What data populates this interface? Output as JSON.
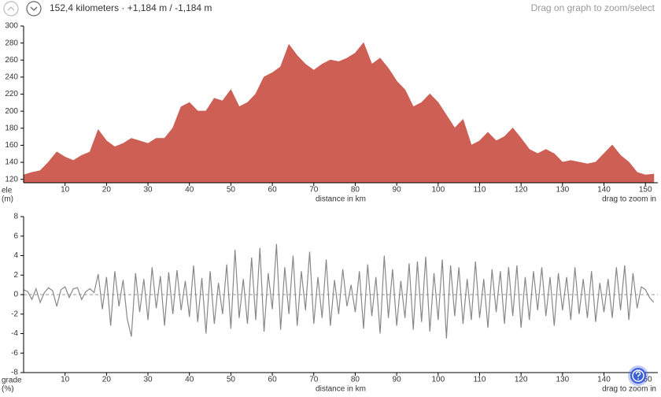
{
  "header": {
    "summary": "152,4 kilometers · +1,184 m / -1,184 m",
    "hint": "Drag on graph to zoom/select"
  },
  "chart_data": [
    {
      "type": "area",
      "color": "#cd5f55",
      "ylabel": [
        "ele",
        "(m)"
      ],
      "xlabel": "distance in km",
      "note": "drag to zoom in",
      "xlim": [
        0,
        153
      ],
      "xticks": [
        10,
        20,
        30,
        40,
        50,
        60,
        70,
        80,
        90,
        100,
        110,
        120,
        130,
        140,
        150
      ],
      "ylim": [
        116,
        300
      ],
      "yticks": [
        120,
        140,
        160,
        180,
        200,
        220,
        240,
        260,
        280,
        300
      ],
      "x": [
        0,
        2,
        4,
        6,
        8,
        10,
        12,
        14,
        16,
        18,
        20,
        22,
        24,
        26,
        28,
        30,
        32,
        34,
        36,
        38,
        40,
        42,
        44,
        46,
        48,
        50,
        52,
        54,
        56,
        58,
        60,
        62,
        64,
        66,
        68,
        70,
        72,
        74,
        76,
        78,
        80,
        82,
        84,
        86,
        88,
        90,
        92,
        94,
        96,
        98,
        100,
        102,
        104,
        106,
        108,
        110,
        112,
        114,
        116,
        118,
        120,
        122,
        124,
        126,
        128,
        130,
        132,
        134,
        136,
        138,
        140,
        142,
        144,
        146,
        148,
        150,
        152
      ],
      "values": [
        125,
        128,
        130,
        140,
        152,
        146,
        142,
        148,
        152,
        178,
        165,
        158,
        162,
        168,
        165,
        162,
        168,
        168,
        180,
        205,
        210,
        200,
        200,
        215,
        212,
        225,
        205,
        210,
        220,
        240,
        245,
        252,
        278,
        265,
        255,
        248,
        255,
        260,
        258,
        262,
        268,
        280,
        255,
        262,
        250,
        235,
        225,
        205,
        210,
        220,
        210,
        195,
        180,
        190,
        160,
        165,
        175,
        165,
        170,
        180,
        168,
        155,
        150,
        155,
        150,
        140,
        142,
        140,
        138,
        140,
        150,
        160,
        148,
        140,
        128,
        125,
        126
      ]
    },
    {
      "type": "line",
      "color": "#888888",
      "zero_line": true,
      "ylabel": [
        "grade",
        "(%)"
      ],
      "xlabel": "distance in km",
      "note": "drag to zoom in",
      "xlim": [
        0,
        153
      ],
      "xticks": [
        10,
        20,
        30,
        40,
        50,
        60,
        70,
        80,
        90,
        100,
        110,
        120,
        130,
        140,
        150
      ],
      "ylim": [
        -8,
        8
      ],
      "yticks": [
        -8,
        -6,
        -4,
        -2,
        0,
        2,
        4,
        6,
        8
      ],
      "x": [
        0,
        1,
        2,
        3,
        4,
        5,
        6,
        7,
        8,
        9,
        10,
        11,
        12,
        13,
        14,
        15,
        16,
        17,
        18,
        19,
        20,
        21,
        22,
        23,
        24,
        25,
        26,
        27,
        28,
        29,
        30,
        31,
        32,
        33,
        34,
        35,
        36,
        37,
        38,
        39,
        40,
        41,
        42,
        43,
        44,
        45,
        46,
        47,
        48,
        49,
        50,
        51,
        52,
        53,
        54,
        55,
        56,
        57,
        58,
        59,
        60,
        61,
        62,
        63,
        64,
        65,
        66,
        67,
        68,
        69,
        70,
        71,
        72,
        73,
        74,
        75,
        76,
        77,
        78,
        79,
        80,
        81,
        82,
        83,
        84,
        85,
        86,
        87,
        88,
        89,
        90,
        91,
        92,
        93,
        94,
        95,
        96,
        97,
        98,
        99,
        100,
        101,
        102,
        103,
        104,
        105,
        106,
        107,
        108,
        109,
        110,
        111,
        112,
        113,
        114,
        115,
        116,
        117,
        118,
        119,
        120,
        121,
        122,
        123,
        124,
        125,
        126,
        127,
        128,
        129,
        130,
        131,
        132,
        133,
        134,
        135,
        136,
        137,
        138,
        139,
        140,
        141,
        142,
        143,
        144,
        145,
        146,
        147,
        148,
        149,
        150,
        151,
        152
      ],
      "values": [
        0.5,
        0.3,
        -0.5,
        0.6,
        -0.8,
        0.2,
        0.7,
        0.4,
        -1.2,
        0.5,
        0.8,
        -0.3,
        0.6,
        0.7,
        -0.5,
        0.3,
        0.6,
        0.2,
        2.1,
        -1.5,
        1.8,
        -3.2,
        2.4,
        -1.2,
        1.5,
        -2.5,
        -4.3,
        2.2,
        -1.8,
        1.6,
        -2.6,
        2.8,
        -1.4,
        1.9,
        -3.2,
        2.3,
        -2.0,
        2.5,
        -1.6,
        1.4,
        -2.3,
        3.0,
        -2.8,
        1.7,
        -4.0,
        2.4,
        -3.0,
        1.2,
        -2.0,
        3.1,
        -3.5,
        4.6,
        -2.4,
        1.6,
        -3.0,
        3.8,
        -2.6,
        4.8,
        -3.8,
        2.2,
        -1.5,
        5.2,
        -3.6,
        2.8,
        -2.0,
        4.0,
        -3.2,
        2.4,
        -1.6,
        4.4,
        -3.0,
        1.8,
        -2.4,
        3.6,
        -3.2,
        1.5,
        -2.0,
        2.6,
        -1.2,
        1.0,
        -1.8,
        2.4,
        -3.5,
        3.1,
        -2.2,
        1.8,
        -4.0,
        4.0,
        -2.4,
        2.6,
        -3.2,
        1.4,
        -2.4,
        3.2,
        -3.6,
        3.4,
        -2.8,
        3.9,
        -3.8,
        2.2,
        -2.6,
        3.6,
        -4.5,
        3.0,
        -2.2,
        2.8,
        -3.0,
        1.6,
        -2.6,
        3.4,
        -2.4,
        1.6,
        -3.4,
        2.6,
        -1.8,
        2.4,
        -3.0,
        2.8,
        -2.2,
        3.0,
        -3.4,
        1.8,
        -2.6,
        2.4,
        -1.6,
        2.8,
        -2.2,
        1.8,
        -3.2,
        2.2,
        -1.6,
        1.8,
        -2.6,
        2.8,
        -2.0,
        1.6,
        -2.4,
        2.4,
        -2.8,
        1.2,
        -1.8,
        1.6,
        -2.4,
        2.8,
        -1.6,
        3.0,
        -2.6,
        2.2,
        -1.4,
        0.8,
        0.5,
        -0.3,
        -0.8
      ]
    }
  ]
}
